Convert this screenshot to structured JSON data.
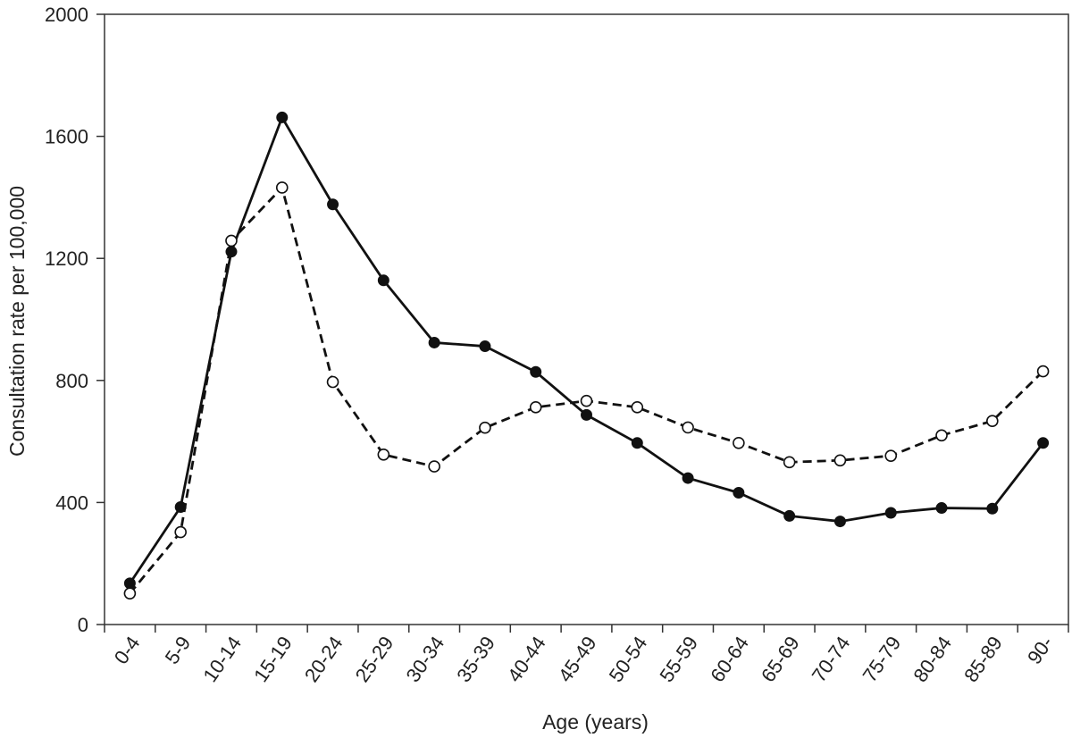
{
  "chart_data": {
    "type": "line",
    "title": "",
    "xlabel": "Age (years)",
    "ylabel": "Consultation rate per 100,000",
    "ylim": [
      0,
      2000
    ],
    "yticks": [
      0,
      400,
      800,
      1200,
      1600,
      2000
    ],
    "ytick_labels": [
      "0",
      "400",
      "800",
      "1200",
      "1600",
      "2000"
    ],
    "categories": [
      "0-4",
      "5-9",
      "10-14",
      "15-19",
      "20-24",
      "25-29",
      "30-34",
      "35-39",
      "40-44",
      "45-49",
      "50-54",
      "55-59",
      "60-64",
      "65-69",
      "70-74",
      "75-79",
      "80-84",
      "85-89",
      "90-"
    ],
    "grid": false,
    "legend": "none",
    "series": [
      {
        "style": "solid",
        "marker": "filled-circle",
        "color": "#111111",
        "values": [
          135,
          385,
          1222,
          1662,
          1377,
          1128,
          924,
          912,
          828,
          687,
          595,
          480,
          432,
          356,
          338,
          366,
          382,
          380,
          595
        ]
      },
      {
        "style": "dashed",
        "marker": "open-circle",
        "color": "#111111",
        "values": [
          102,
          303,
          1258,
          1432,
          795,
          557,
          518,
          645,
          712,
          733,
          712,
          646,
          595,
          532,
          538,
          553,
          620,
          667,
          830
        ]
      }
    ]
  }
}
